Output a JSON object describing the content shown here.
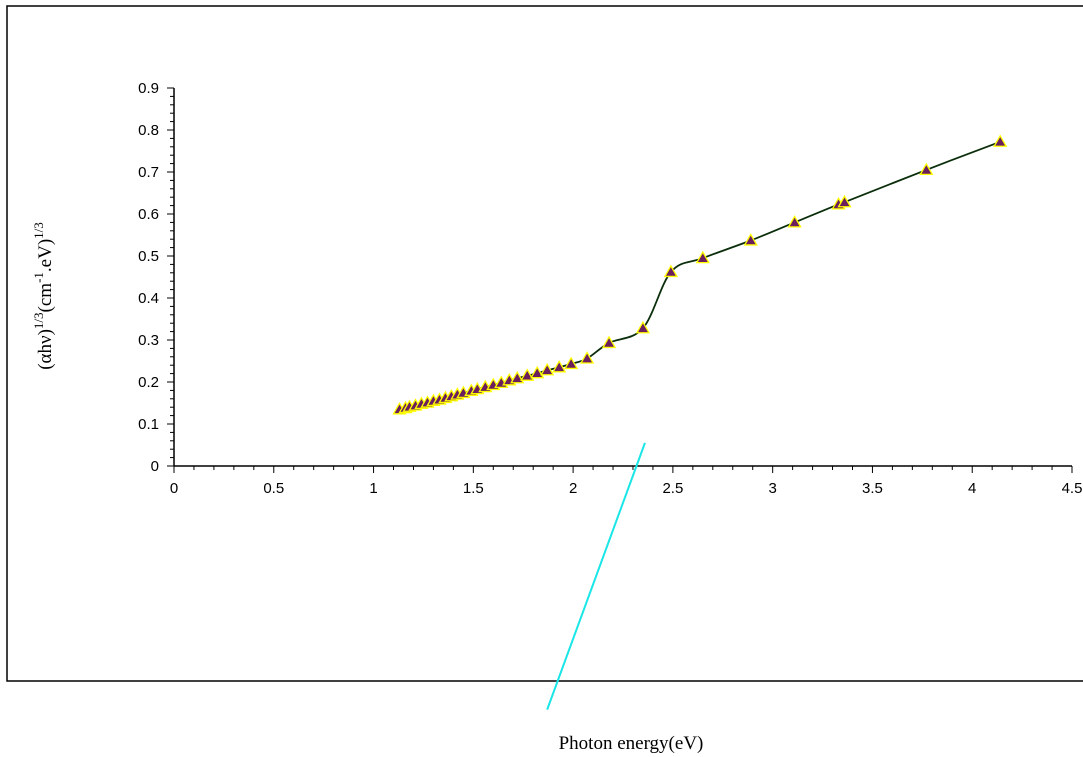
{
  "chart_data": {
    "type": "line",
    "title": "",
    "xlabel": "Photon energy(eV)",
    "ylabel": {
      "base": "(αhν)",
      "exp1": "1/3",
      "mid": "(cm",
      "exp2": "-1",
      "tail": ".eV)",
      "exp3": "1/3"
    },
    "xlim": [
      0,
      4.5
    ],
    "ylim": [
      0,
      0.9
    ],
    "x_ticks": [
      "0",
      "0.5",
      "1",
      "1.5",
      "2",
      "2.5",
      "3",
      "3.5",
      "4",
      "4.5"
    ],
    "y_ticks": [
      "0",
      "0.1",
      "0.2",
      "0.3",
      "0.4",
      "0.5",
      "0.6",
      "0.7",
      "0.8",
      "0.9"
    ],
    "grid": false,
    "legend": "none",
    "series": [
      {
        "values_x": [
          1.13,
          1.16,
          1.18,
          1.21,
          1.24,
          1.27,
          1.3,
          1.33,
          1.36,
          1.39,
          1.42,
          1.45,
          1.49,
          1.52,
          1.56,
          1.6,
          1.64,
          1.68,
          1.72,
          1.77,
          1.82,
          1.87,
          1.93,
          1.99,
          2.07,
          2.18,
          2.35,
          2.49,
          2.65,
          2.89,
          3.11,
          3.33,
          3.36,
          3.77,
          4.14
        ],
        "values_y": [
          0.135,
          0.138,
          0.141,
          0.144,
          0.148,
          0.151,
          0.155,
          0.158,
          0.162,
          0.166,
          0.17,
          0.174,
          0.179,
          0.183,
          0.188,
          0.193,
          0.198,
          0.204,
          0.209,
          0.215,
          0.221,
          0.228,
          0.235,
          0.243,
          0.256,
          0.293,
          0.328,
          0.462,
          0.495,
          0.537,
          0.58,
          0.623,
          0.628,
          0.705,
          0.772
        ]
      }
    ],
    "annotation_line": {
      "x": [
        1.87,
        2.36
      ],
      "y": [
        -0.58,
        0.055
      ]
    },
    "colors": {
      "line": "#0b2e0b",
      "marker_fill": "#6b1f5c",
      "marker_stroke": "#ffff00",
      "annotation_line": "#19e6e6",
      "axis": "#000000",
      "frame": "#000000"
    }
  }
}
